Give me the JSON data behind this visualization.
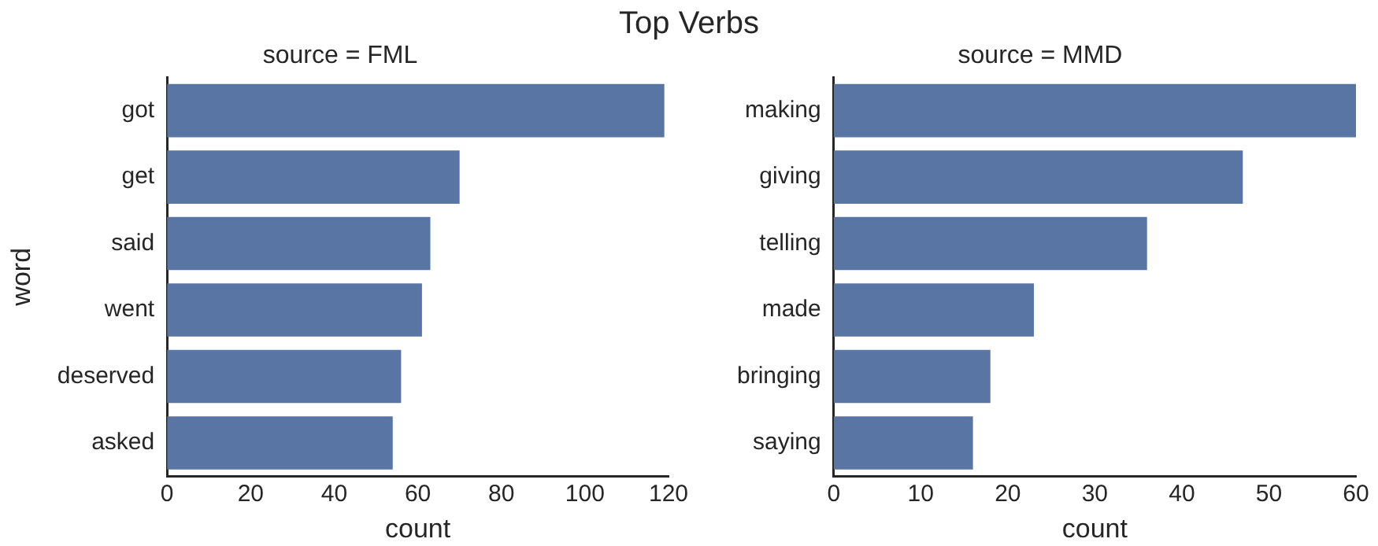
{
  "chart_data": [
    {
      "type": "bar",
      "orientation": "horizontal",
      "title": "source = FML",
      "annotations": [
        "Top Verbs"
      ],
      "xlabel": "count",
      "ylabel": "word",
      "categories": [
        "got",
        "get",
        "said",
        "went",
        "deserved",
        "asked"
      ],
      "values": [
        119,
        70,
        63,
        61,
        56,
        54
      ],
      "color": "#5875a4",
      "xlim": [
        0,
        120
      ],
      "xticks": [
        0,
        20,
        40,
        60,
        80,
        100,
        120
      ],
      "grid": false
    },
    {
      "type": "bar",
      "orientation": "horizontal",
      "title": "source = MMD",
      "xlabel": "count",
      "categories": [
        "making",
        "giving",
        "telling",
        "made",
        "bringing",
        "saying"
      ],
      "values": [
        60,
        47,
        36,
        23,
        18,
        16
      ],
      "color": "#5875a4",
      "xlim": [
        0,
        60
      ],
      "xticks": [
        0,
        10,
        20,
        30,
        40,
        50,
        60
      ],
      "grid": false
    }
  ]
}
